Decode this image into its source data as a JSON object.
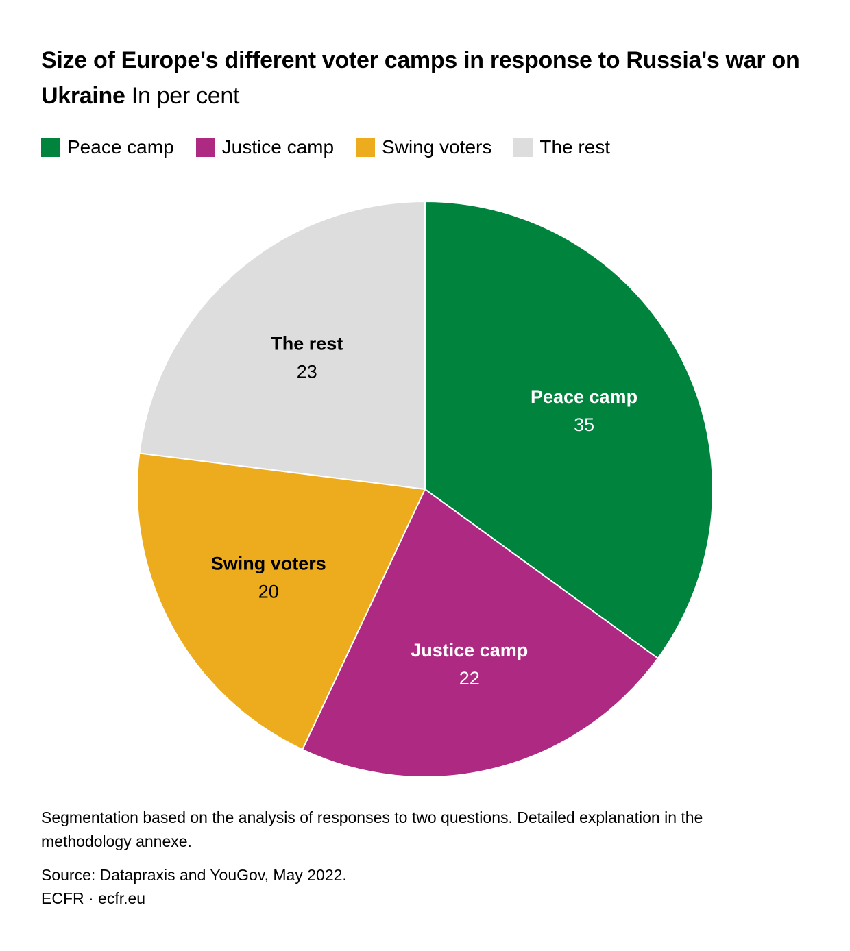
{
  "title": {
    "main": "Size of Europe's different voter camps in response to Russia's war on Ukraine",
    "unit": "In per cent"
  },
  "chart_data": {
    "type": "pie",
    "title": "Size of Europe's different voter camps in response to Russia's war on Ukraine",
    "unit": "In per cent",
    "legend_position": "top-left",
    "categories": [
      "Peace camp",
      "Justice camp",
      "Swing voters",
      "The rest"
    ],
    "values": [
      35,
      22,
      20,
      23
    ],
    "colors": [
      "#00843D",
      "#AE2A82",
      "#ECAC1E",
      "#DDDDDD"
    ],
    "label_colors": [
      "#ffffff",
      "#ffffff",
      "#000000",
      "#000000"
    ],
    "start": "12 o'clock, clockwise"
  },
  "legend": [
    {
      "label": "Peace camp",
      "color": "#00843D"
    },
    {
      "label": "Justice camp",
      "color": "#AE2A82"
    },
    {
      "label": "Swing voters",
      "color": "#ECAC1E"
    },
    {
      "label": "The rest",
      "color": "#DDDDDD"
    }
  ],
  "footnote": "Segmentation based on the analysis of responses to two questions. Detailed explanation in the methodology annexe.",
  "source": "Source: Datapraxis and YouGov, May 2022.",
  "credit": "ECFR · ecfr.eu"
}
